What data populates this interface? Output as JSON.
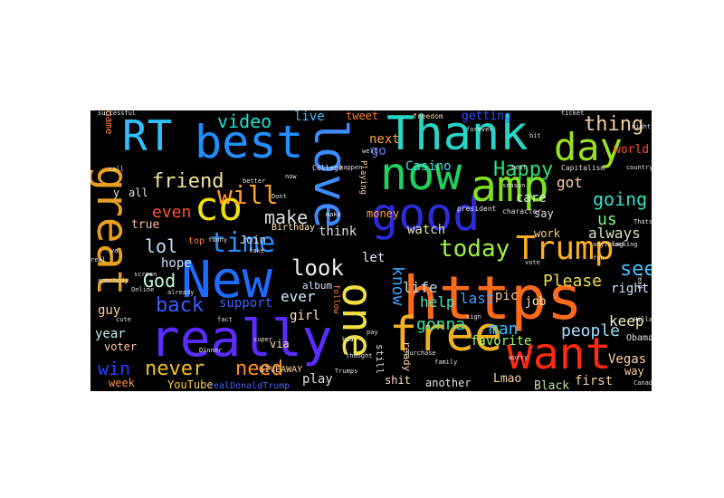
{
  "background": "#000000",
  "words": [
    {
      "text": "https",
      "color": "#ff6a1a"
    },
    {
      "text": "really",
      "color": "#5b2cff"
    },
    {
      "text": "New",
      "color": "#1f6bff"
    },
    {
      "text": "Thank",
      "color": "#2ad4c4"
    },
    {
      "text": "best",
      "color": "#1f8fff"
    },
    {
      "text": "good",
      "color": "#2b2bd8"
    },
    {
      "text": "great",
      "color": "#e8a020"
    },
    {
      "text": "love",
      "color": "#3e8bff"
    },
    {
      "text": "amp",
      "color": "#7fe020"
    },
    {
      "text": "now",
      "color": "#20d060"
    },
    {
      "text": "free",
      "color": "#f0b020"
    },
    {
      "text": "want",
      "color": "#ff2a10"
    },
    {
      "text": "one",
      "color": "#f0e040"
    },
    {
      "text": "Trump",
      "color": "#ffb020"
    },
    {
      "text": "day",
      "color": "#9ae020"
    },
    {
      "text": "co",
      "color": "#f0e010"
    },
    {
      "text": "RT",
      "color": "#30c0ff"
    },
    {
      "text": "time",
      "color": "#2a8cff"
    },
    {
      "text": "will",
      "color": "#ffa020"
    },
    {
      "text": "today",
      "color": "#a0f040"
    },
    {
      "text": "look",
      "color": "#e8f0f0"
    },
    {
      "text": "back",
      "color": "#3a5cff"
    },
    {
      "text": "friend",
      "color": "#f0e0a0"
    },
    {
      "text": "video",
      "color": "#20e0d0"
    },
    {
      "text": "never",
      "color": "#f0c020"
    },
    {
      "text": "need",
      "color": "#ff9020"
    },
    {
      "text": "win",
      "color": "#2a40ff"
    },
    {
      "text": "Happy",
      "color": "#30e070"
    },
    {
      "text": "thing",
      "color": "#f0d0a0"
    },
    {
      "text": "see",
      "color": "#40c0ff"
    },
    {
      "text": "lol",
      "color": "#c0e0ff"
    },
    {
      "text": "make",
      "color": "#e0e0e0"
    },
    {
      "text": "God",
      "color": "#c0ffe0"
    },
    {
      "text": "know",
      "color": "#3aa0ff"
    },
    {
      "text": "going",
      "color": "#30e0c0"
    },
    {
      "text": "Please",
      "color": "#f0e040"
    },
    {
      "text": "us",
      "color": "#70ff70"
    },
    {
      "text": "got",
      "color": "#ffd0a0"
    },
    {
      "text": "man",
      "color": "#30c0ff"
    },
    {
      "text": "people",
      "color": "#a0e0ff"
    },
    {
      "text": "gonna",
      "color": "#40e0a0"
    },
    {
      "text": "even",
      "color": "#ff5030"
    },
    {
      "text": "life",
      "color": "#c0e0e0"
    },
    {
      "text": "last",
      "color": "#40a0ff"
    },
    {
      "text": "help",
      "color": "#40e0c0"
    },
    {
      "text": "keep",
      "color": "#f0f0c0"
    },
    {
      "text": "always",
      "color": "#d0e0c0"
    },
    {
      "text": "watch",
      "color": "#e0e0a0"
    },
    {
      "text": "ever",
      "color": "#d0f0ff"
    },
    {
      "text": "girl",
      "color": "#ffe0c0"
    },
    {
      "text": "hope",
      "color": "#d0e0ff"
    },
    {
      "text": "support",
      "color": "#4060ff"
    },
    {
      "text": "favorite",
      "color": "#a0ff60"
    },
    {
      "text": "right",
      "color": "#d0e0ff"
    },
    {
      "text": "year",
      "color": "#c0f0f0"
    },
    {
      "text": "guy",
      "color": "#ffd0a0"
    },
    {
      "text": "play",
      "color": "#e0e0e0"
    },
    {
      "text": "via",
      "color": "#ffe0b0"
    },
    {
      "text": "think",
      "color": "#e0e0e0"
    },
    {
      "text": "let",
      "color": "#e0f0ff"
    },
    {
      "text": "true",
      "color": "#ffc0a0"
    },
    {
      "text": "live",
      "color": "#40c0ff"
    },
    {
      "text": "tweet",
      "color": "#ff8020"
    },
    {
      "text": "Casino",
      "color": "#40e0e0"
    },
    {
      "text": "next",
      "color": "#ffa030"
    },
    {
      "text": "go",
      "color": "#6080ff"
    },
    {
      "text": "getting",
      "color": "#3050ff"
    },
    {
      "text": "world",
      "color": "#ff5020"
    },
    {
      "text": "care",
      "color": "#d0ffd0"
    },
    {
      "text": "work",
      "color": "#ffd080"
    },
    {
      "text": "job",
      "color": "#ffe0c0"
    },
    {
      "text": "pic",
      "color": "#ffd0a0"
    },
    {
      "text": "first",
      "color": "#ffd0a0"
    },
    {
      "text": "Vegas",
      "color": "#ffd0a0"
    },
    {
      "text": "way",
      "color": "#ffd0a0"
    },
    {
      "text": "Lmao",
      "color": "#f0d0a0"
    },
    {
      "text": "Black",
      "color": "#c0e0a0"
    },
    {
      "text": "shit",
      "color": "#ffe0c0"
    },
    {
      "text": "another",
      "color": "#e0e0e0"
    },
    {
      "text": "week",
      "color": "#ff9040"
    },
    {
      "text": "YouTube",
      "color": "#ffd040"
    },
    {
      "text": "voter",
      "color": "#ffd0a0"
    },
    {
      "text": "Join",
      "color": "#e0e0e0"
    },
    {
      "text": "say",
      "color": "#e0e0e0"
    },
    {
      "text": "money",
      "color": "#ffa040"
    },
    {
      "text": "album",
      "color": "#d0e0ff"
    },
    {
      "text": "Birthday",
      "color": "#ffe0b0"
    },
    {
      "text": "GIVEAWAY",
      "color": "#ffd0a0"
    },
    {
      "text": "realDonaldTrump",
      "color": "#4060ff"
    },
    {
      "text": "Obama",
      "color": "#e0e0e0"
    },
    {
      "text": "still",
      "color": "#e0e0e0"
    },
    {
      "text": "ready",
      "color": "#ffd0a0"
    },
    {
      "text": "all",
      "color": "#e0e0e0"
    },
    {
      "text": "y",
      "color": "#e0e0e0"
    },
    {
      "text": "game",
      "color": "#ff8040"
    },
    {
      "text": "president",
      "color": "#e0e0e0"
    },
    {
      "text": "College",
      "color": "#e0e0e0"
    },
    {
      "text": "Playing",
      "color": "#ffd0a0"
    },
    {
      "text": "follow",
      "color": "#ff8040"
    },
    {
      "text": "Capitalism",
      "color": "#e0e0e0"
    },
    {
      "text": "character",
      "color": "#e0e0e0"
    },
    {
      "text": "freedom",
      "color": "#ffd0a0"
    },
    {
      "text": "successful",
      "color": "#e0e0e0"
    },
    {
      "text": "ticket",
      "color": "#e0e0e0"
    },
    {
      "text": "country",
      "color": "#e0e0e0"
    },
    {
      "text": "already",
      "color": "#e0e0e0"
    },
    {
      "text": "fucking",
      "color": "#e0e0e0"
    },
    {
      "text": "better",
      "color": "#e0e0e0"
    },
    {
      "text": "funny",
      "color": "#e0e0e0"
    },
    {
      "text": "Canada",
      "color": "#e0e0e0"
    },
    {
      "text": "family",
      "color": "#e0e0e0"
    },
    {
      "text": "purchase",
      "color": "#e0e0e0"
    },
    {
      "text": "thought",
      "color": "#e0e0e0"
    },
    {
      "text": "anything",
      "color": "#e0e0e0"
    },
    {
      "text": "night",
      "color": "#e0e0e0"
    },
    {
      "text": "Trumps",
      "color": "#e0e0e0"
    },
    {
      "text": "Thats",
      "color": "#e0e0e0"
    },
    {
      "text": "read",
      "color": "#e0e0e0"
    },
    {
      "text": "top",
      "color": "#ff8040"
    },
    {
      "text": "pay",
      "color": "#e0e0e0"
    },
    {
      "text": "fake",
      "color": "#e0e0e0"
    },
    {
      "text": "sign",
      "color": "#e0e0e0"
    },
    {
      "text": "well",
      "color": "#e0e0e0"
    },
    {
      "text": "Dont",
      "color": "#e0e0e0"
    },
    {
      "text": "worry",
      "color": "#e0e0e0"
    },
    {
      "text": "bit",
      "color": "#e0e0e0"
    },
    {
      "text": "Hillary",
      "color": "#e0e0e0"
    },
    {
      "text": "Online",
      "color": "#e0e0e0"
    },
    {
      "text": "bad",
      "color": "#e0e0e0"
    },
    {
      "text": "screen",
      "color": "#e0e0e0"
    },
    {
      "text": "call",
      "color": "#e0e0e0"
    },
    {
      "text": "real",
      "color": "#e0e0e0"
    },
    {
      "text": "best",
      "color": "#e0e0e0"
    },
    {
      "text": "somebody",
      "color": "#e0e0e0"
    },
    {
      "text": "cute",
      "color": "#e0e0e0"
    },
    {
      "text": "fact",
      "color": "#e0e0e0"
    },
    {
      "text": "ya",
      "color": "#e0e0e0"
    },
    {
      "text": "now",
      "color": "#e0e0e0"
    },
    {
      "text": "super",
      "color": "#e0e0e0"
    },
    {
      "text": "vote",
      "color": "#e0e0e0"
    },
    {
      "text": "season",
      "color": "#e0e0e0"
    },
    {
      "text": "forever",
      "color": "#e0e0e0"
    },
    {
      "text": "Dinner",
      "color": "#e0e0e0"
    },
    {
      "text": "happen",
      "color": "#e0e0e0"
    },
    {
      "text": "fun",
      "color": "#e0e0e0"
    },
    {
      "text": "make",
      "color": "#e0e0e0"
    }
  ]
}
